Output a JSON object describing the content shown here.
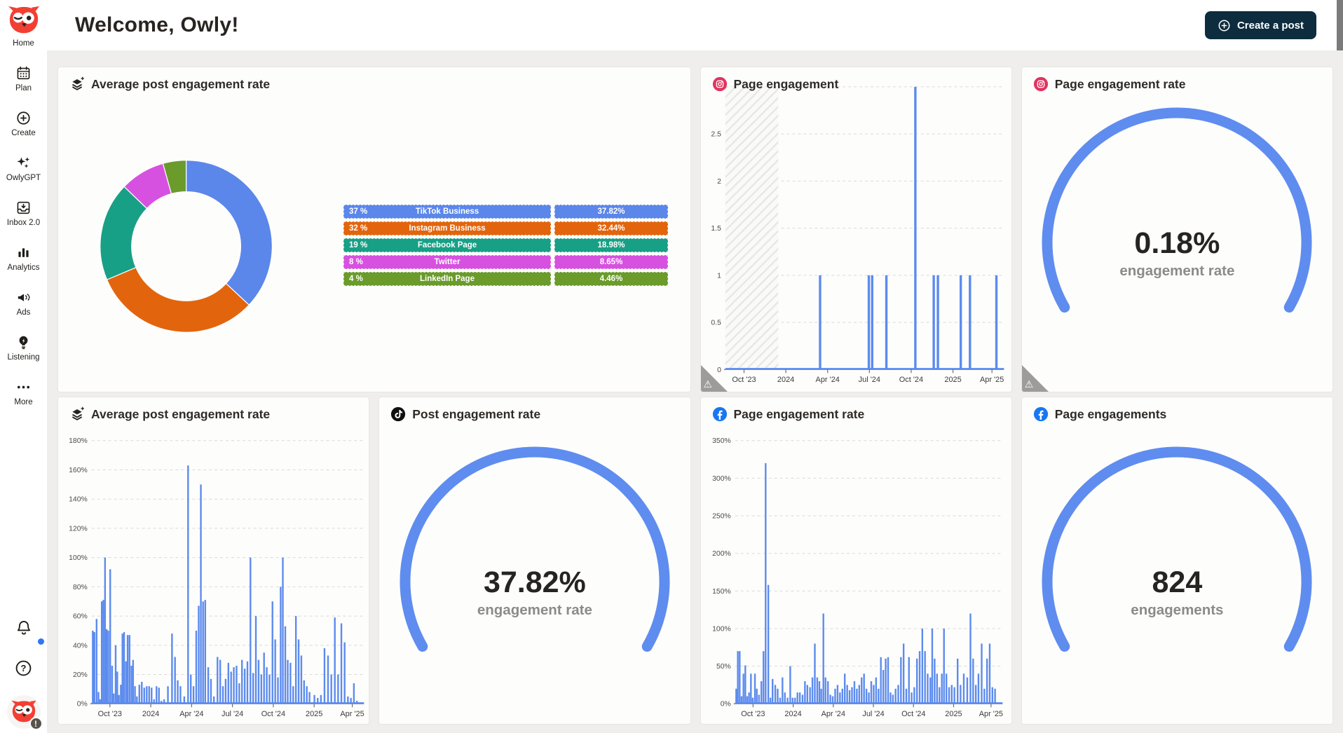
{
  "header": {
    "title": "Welcome, Owly!",
    "create_post": "Create a post"
  },
  "sidebar": {
    "logo_label": "Home",
    "items": [
      {
        "id": "plan",
        "label": "Plan",
        "icon": "calendar-icon"
      },
      {
        "id": "create",
        "label": "Create",
        "icon": "plus-circle-icon"
      },
      {
        "id": "owlygpt",
        "label": "OwlyGPT",
        "icon": "sparkles-icon"
      },
      {
        "id": "inbox",
        "label": "Inbox 2.0",
        "icon": "inbox-icon"
      },
      {
        "id": "analytics",
        "label": "Analytics",
        "icon": "bar-chart-icon"
      },
      {
        "id": "ads",
        "label": "Ads",
        "icon": "megaphone-icon"
      },
      {
        "id": "listening",
        "label": "Listening",
        "icon": "bulb-icon"
      },
      {
        "id": "more",
        "label": "More",
        "icon": "ellipsis-icon"
      }
    ],
    "avatar_badge": "!"
  },
  "cards": [
    {
      "title": "Average post engagement rate",
      "icon": "layers-plus-icon",
      "warning": false
    },
    {
      "title": "Page engagement",
      "icon": "instagram-icon",
      "warning": true
    },
    {
      "title": "Page engagement rate",
      "icon": "instagram-icon",
      "warning": true
    },
    {
      "title": "Average post engagement rate",
      "icon": "layers-plus-icon",
      "warning": false
    },
    {
      "title": "Post engagement rate",
      "icon": "tiktok-icon",
      "warning": false
    },
    {
      "title": "Page engagement rate",
      "icon": "facebook-icon",
      "warning": false
    },
    {
      "title": "Page engagements",
      "icon": "facebook-icon",
      "warning": false
    }
  ],
  "colors": {
    "accent_blue": "#5c8bee",
    "gauge_blue": "#5f8cef",
    "button_navy": "#0d2c3e",
    "instagram": "#e1345e",
    "facebook": "#1877f2",
    "tiktok": "#101010",
    "warning_gray": "#9d9c9a"
  },
  "chart_data": [
    {
      "type": "pie",
      "donut": true,
      "title": "Average post engagement rate",
      "legend_position": "right",
      "segments": [
        {
          "label": "TikTok Business",
          "percent_label": "37 %",
          "value": 37.82,
          "value_label": "37.82%",
          "color": "#5b87ea"
        },
        {
          "label": "Instagram Business",
          "percent_label": "32 %",
          "value": 32.44,
          "value_label": "32.44%",
          "color": "#e2650e"
        },
        {
          "label": "Facebook Page",
          "percent_label": "19 %",
          "value": 18.98,
          "value_label": "18.98%",
          "color": "#18a086"
        },
        {
          "label": "Twitter",
          "percent_label": "8 %",
          "value": 8.65,
          "value_label": "8.65%",
          "color": "#d751e0"
        },
        {
          "label": "LinkedIn Page",
          "percent_label": "4 %",
          "value": 4.46,
          "value_label": "4.46%",
          "color": "#6a9b2b"
        }
      ]
    },
    {
      "type": "bar",
      "title": "Page engagement",
      "network": "instagram",
      "bar_color": "#5c8bee",
      "bar_width": 3.4,
      "ylim": [
        0,
        3
      ],
      "yticks": [
        "0",
        "0.5",
        "1",
        "1.5",
        "2",
        "2.5",
        "3"
      ],
      "xticks": [
        [
          "Oct '23",
          0.067
        ],
        [
          "2024",
          0.217
        ],
        [
          "Apr '24",
          0.367
        ],
        [
          "Jul '24",
          0.517
        ],
        [
          "Oct '24",
          0.667
        ],
        [
          "2025",
          0.817
        ],
        [
          "Apr '25",
          0.957
        ]
      ],
      "grid": "dashed",
      "no_data_region": [
        0,
        0.19
      ],
      "bars": [
        [
          0.34,
          1
        ],
        [
          0.515,
          1
        ],
        [
          0.527,
          1
        ],
        [
          0.578,
          1
        ],
        [
          0.682,
          3
        ],
        [
          0.748,
          1
        ],
        [
          0.763,
          1
        ],
        [
          0.845,
          1
        ],
        [
          0.878,
          1
        ],
        [
          0.973,
          1
        ]
      ]
    },
    {
      "type": "gauge",
      "title": "Page engagement rate",
      "network": "instagram",
      "value": "0.18%",
      "caption": "engagement rate"
    },
    {
      "type": "bar",
      "title": "Average post engagement rate",
      "bar_color": "#5c8bee",
      "bar_width": 2.4,
      "ylim": [
        0,
        180
      ],
      "yticks": [
        "0%",
        "20%",
        "40%",
        "60%",
        "80%",
        "100%",
        "120%",
        "140%",
        "160%",
        "180%"
      ],
      "xticks": [
        [
          "Oct '23",
          0.067
        ],
        [
          "2024",
          0.217
        ],
        [
          "Apr '24",
          0.367
        ],
        [
          "Jul '24",
          0.517
        ],
        [
          "Oct '24",
          0.667
        ],
        [
          "2025",
          0.817
        ],
        [
          "Apr '25",
          0.957
        ]
      ],
      "grid": "dashed",
      "bars": [
        [
          0.004,
          50
        ],
        [
          0.01,
          49
        ],
        [
          0.018,
          58
        ],
        [
          0.025,
          8
        ],
        [
          0.031,
          3
        ],
        [
          0.037,
          70
        ],
        [
          0.043,
          71
        ],
        [
          0.049,
          100
        ],
        [
          0.055,
          51
        ],
        [
          0.061,
          50
        ],
        [
          0.068,
          92
        ],
        [
          0.075,
          26
        ],
        [
          0.081,
          7
        ],
        [
          0.088,
          40
        ],
        [
          0.094,
          22
        ],
        [
          0.1,
          6
        ],
        [
          0.107,
          13
        ],
        [
          0.113,
          48
        ],
        [
          0.119,
          49
        ],
        [
          0.126,
          29
        ],
        [
          0.132,
          47
        ],
        [
          0.139,
          47
        ],
        [
          0.146,
          26
        ],
        [
          0.152,
          30
        ],
        [
          0.159,
          12
        ],
        [
          0.166,
          5
        ],
        [
          0.175,
          13
        ],
        [
          0.184,
          15
        ],
        [
          0.193,
          11
        ],
        [
          0.202,
          12
        ],
        [
          0.211,
          12
        ],
        [
          0.22,
          11
        ],
        [
          0.229,
          3
        ],
        [
          0.238,
          12
        ],
        [
          0.247,
          11
        ],
        [
          0.256,
          2
        ],
        [
          0.266,
          3
        ],
        [
          0.28,
          12
        ],
        [
          0.295,
          48
        ],
        [
          0.306,
          32
        ],
        [
          0.316,
          16
        ],
        [
          0.326,
          12
        ],
        [
          0.34,
          5
        ],
        [
          0.354,
          163
        ],
        [
          0.364,
          20
        ],
        [
          0.374,
          12
        ],
        [
          0.384,
          50
        ],
        [
          0.393,
          67
        ],
        [
          0.401,
          150
        ],
        [
          0.409,
          70
        ],
        [
          0.417,
          71
        ],
        [
          0.428,
          25
        ],
        [
          0.438,
          17
        ],
        [
          0.449,
          5
        ],
        [
          0.462,
          32
        ],
        [
          0.472,
          30
        ],
        [
          0.482,
          12
        ],
        [
          0.492,
          17
        ],
        [
          0.502,
          28
        ],
        [
          0.512,
          22
        ],
        [
          0.522,
          25
        ],
        [
          0.532,
          26
        ],
        [
          0.542,
          14
        ],
        [
          0.552,
          30
        ],
        [
          0.562,
          24
        ],
        [
          0.572,
          29
        ],
        [
          0.583,
          100
        ],
        [
          0.593,
          21
        ],
        [
          0.603,
          60
        ],
        [
          0.613,
          30
        ],
        [
          0.623,
          20
        ],
        [
          0.633,
          35
        ],
        [
          0.643,
          25
        ],
        [
          0.653,
          20
        ],
        [
          0.664,
          70
        ],
        [
          0.674,
          44
        ],
        [
          0.684,
          18
        ],
        [
          0.694,
          80
        ],
        [
          0.702,
          100
        ],
        [
          0.711,
          53
        ],
        [
          0.72,
          30
        ],
        [
          0.73,
          28
        ],
        [
          0.74,
          12
        ],
        [
          0.75,
          60
        ],
        [
          0.76,
          44
        ],
        [
          0.77,
          33
        ],
        [
          0.78,
          16
        ],
        [
          0.79,
          12
        ],
        [
          0.8,
          8
        ],
        [
          0.818,
          6
        ],
        [
          0.83,
          4
        ],
        [
          0.842,
          6
        ],
        [
          0.855,
          38
        ],
        [
          0.868,
          33
        ],
        [
          0.88,
          20
        ],
        [
          0.893,
          59
        ],
        [
          0.905,
          20
        ],
        [
          0.917,
          55
        ],
        [
          0.929,
          42
        ],
        [
          0.941,
          5
        ],
        [
          0.952,
          4
        ],
        [
          0.963,
          14
        ],
        [
          0.974,
          2
        ]
      ]
    },
    {
      "type": "gauge",
      "title": "Post engagement rate",
      "network": "tiktok",
      "value": "37.82%",
      "caption": "engagement rate"
    },
    {
      "type": "bar",
      "title": "Page engagement rate",
      "network": "facebook",
      "bar_color": "#5c8bee",
      "bar_width": 2.4,
      "ylim": [
        0,
        350
      ],
      "yticks": [
        "0%",
        "50%",
        "100%",
        "150%",
        "200%",
        "250%",
        "300%",
        "350%"
      ],
      "xticks": [
        [
          "Oct '23",
          0.067
        ],
        [
          "2024",
          0.217
        ],
        [
          "Apr '24",
          0.367
        ],
        [
          "Jul '24",
          0.517
        ],
        [
          "Oct '24",
          0.667
        ],
        [
          "2025",
          0.817
        ],
        [
          "Apr '25",
          0.957
        ]
      ],
      "grid": "dashed",
      "bars": [
        [
          0.004,
          20
        ],
        [
          0.01,
          70
        ],
        [
          0.017,
          70
        ],
        [
          0.024,
          10
        ],
        [
          0.031,
          40
        ],
        [
          0.038,
          51
        ],
        [
          0.045,
          10
        ],
        [
          0.052,
          15
        ],
        [
          0.059,
          40
        ],
        [
          0.066,
          8
        ],
        [
          0.074,
          40
        ],
        [
          0.081,
          20
        ],
        [
          0.089,
          12
        ],
        [
          0.098,
          30
        ],
        [
          0.106,
          70
        ],
        [
          0.114,
          320
        ],
        [
          0.124,
          158
        ],
        [
          0.132,
          8
        ],
        [
          0.14,
          33
        ],
        [
          0.15,
          25
        ],
        [
          0.159,
          20
        ],
        [
          0.168,
          8
        ],
        [
          0.177,
          35
        ],
        [
          0.186,
          15
        ],
        [
          0.196,
          8
        ],
        [
          0.206,
          50
        ],
        [
          0.215,
          8
        ],
        [
          0.224,
          8
        ],
        [
          0.233,
          15
        ],
        [
          0.242,
          15
        ],
        [
          0.252,
          12
        ],
        [
          0.261,
          30
        ],
        [
          0.27,
          25
        ],
        [
          0.28,
          22
        ],
        [
          0.289,
          35
        ],
        [
          0.298,
          80
        ],
        [
          0.307,
          35
        ],
        [
          0.315,
          30
        ],
        [
          0.322,
          20
        ],
        [
          0.33,
          120
        ],
        [
          0.338,
          35
        ],
        [
          0.347,
          30
        ],
        [
          0.356,
          12
        ],
        [
          0.365,
          10
        ],
        [
          0.374,
          20
        ],
        [
          0.383,
          25
        ],
        [
          0.392,
          15
        ],
        [
          0.401,
          20
        ],
        [
          0.41,
          40
        ],
        [
          0.419,
          25
        ],
        [
          0.428,
          18
        ],
        [
          0.437,
          22
        ],
        [
          0.446,
          30
        ],
        [
          0.455,
          20
        ],
        [
          0.464,
          25
        ],
        [
          0.473,
          35
        ],
        [
          0.482,
          40
        ],
        [
          0.491,
          20
        ],
        [
          0.5,
          15
        ],
        [
          0.509,
          30
        ],
        [
          0.518,
          25
        ],
        [
          0.527,
          35
        ],
        [
          0.536,
          20
        ],
        [
          0.545,
          62
        ],
        [
          0.554,
          45
        ],
        [
          0.563,
          60
        ],
        [
          0.572,
          62
        ],
        [
          0.581,
          15
        ],
        [
          0.59,
          12
        ],
        [
          0.6,
          20
        ],
        [
          0.61,
          25
        ],
        [
          0.62,
          62
        ],
        [
          0.63,
          80
        ],
        [
          0.64,
          20
        ],
        [
          0.65,
          62
        ],
        [
          0.66,
          15
        ],
        [
          0.67,
          22
        ],
        [
          0.68,
          60
        ],
        [
          0.69,
          70
        ],
        [
          0.7,
          100
        ],
        [
          0.71,
          70
        ],
        [
          0.72,
          40
        ],
        [
          0.73,
          35
        ],
        [
          0.737,
          100
        ],
        [
          0.746,
          60
        ],
        [
          0.755,
          40
        ],
        [
          0.764,
          22
        ],
        [
          0.773,
          40
        ],
        [
          0.781,
          100
        ],
        [
          0.79,
          40
        ],
        [
          0.8,
          22
        ],
        [
          0.81,
          25
        ],
        [
          0.82,
          22
        ],
        [
          0.832,
          60
        ],
        [
          0.843,
          25
        ],
        [
          0.855,
          40
        ],
        [
          0.868,
          35
        ],
        [
          0.88,
          120
        ],
        [
          0.89,
          60
        ],
        [
          0.9,
          25
        ],
        [
          0.91,
          40
        ],
        [
          0.922,
          80
        ],
        [
          0.932,
          20
        ],
        [
          0.942,
          60
        ],
        [
          0.952,
          80
        ],
        [
          0.962,
          22
        ],
        [
          0.972,
          20
        ]
      ]
    },
    {
      "type": "gauge",
      "title": "Page engagements",
      "network": "facebook",
      "value": "824",
      "caption": "engagements"
    }
  ]
}
